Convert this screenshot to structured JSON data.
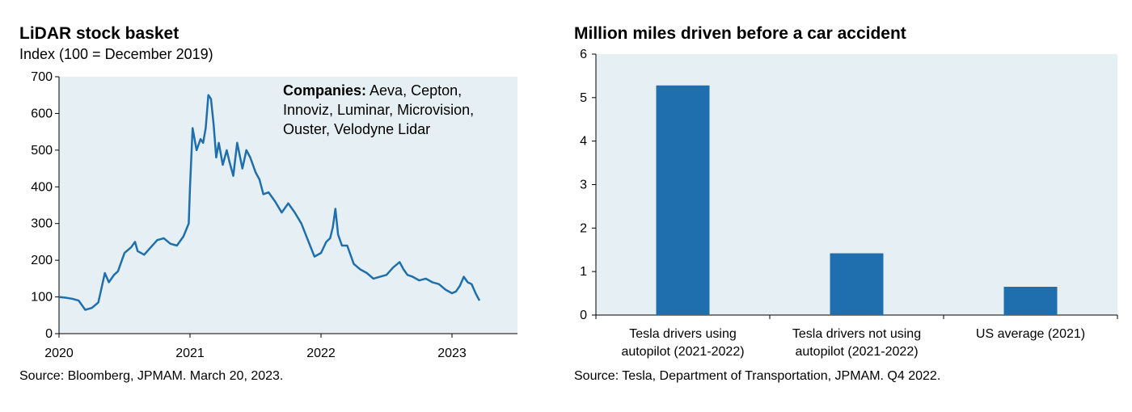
{
  "chart_data": [
    {
      "type": "line",
      "title": "LiDAR stock basket",
      "subtitle": "Index (100 = December 2019)",
      "xlabel": "",
      "ylabel": "",
      "xlim": [
        2020.0,
        2023.5
      ],
      "ylim": [
        0,
        700
      ],
      "y_ticks": [
        "0",
        "100",
        "200",
        "300",
        "400",
        "500",
        "600",
        "700"
      ],
      "x_ticks": [
        "2020",
        "2021",
        "2022",
        "2023"
      ],
      "x_tick_values": [
        2020,
        2021,
        2022,
        2023
      ],
      "grid": false,
      "series": [
        {
          "color": "#1f6fae",
          "x": [
            2020.0,
            2020.05,
            2020.1,
            2020.15,
            2020.2,
            2020.25,
            2020.3,
            2020.35,
            2020.38,
            2020.4,
            2020.42,
            2020.45,
            2020.5,
            2020.55,
            2020.58,
            2020.6,
            2020.65,
            2020.7,
            2020.75,
            2020.8,
            2020.85,
            2020.9,
            2020.95,
            2020.99,
            2021.0,
            2021.02,
            2021.05,
            2021.08,
            2021.1,
            2021.12,
            2021.14,
            2021.16,
            2021.18,
            2021.2,
            2021.22,
            2021.25,
            2021.28,
            2021.3,
            2021.33,
            2021.36,
            2021.4,
            2021.43,
            2021.46,
            2021.5,
            2021.53,
            2021.56,
            2021.6,
            2021.65,
            2021.7,
            2021.75,
            2021.8,
            2021.85,
            2021.9,
            2021.95,
            2022.0,
            2022.04,
            2022.07,
            2022.09,
            2022.11,
            2022.13,
            2022.16,
            2022.2,
            2022.25,
            2022.3,
            2022.35,
            2022.4,
            2022.45,
            2022.5,
            2022.55,
            2022.6,
            2022.63,
            2022.66,
            2022.7,
            2022.75,
            2022.8,
            2022.85,
            2022.9,
            2022.95,
            2023.0,
            2023.03,
            2023.06,
            2023.09,
            2023.12,
            2023.15,
            2023.18,
            2023.21
          ],
          "y": [
            100,
            98,
            95,
            90,
            65,
            70,
            85,
            165,
            140,
            150,
            160,
            170,
            220,
            235,
            250,
            225,
            215,
            235,
            255,
            260,
            245,
            240,
            265,
            300,
            400,
            560,
            500,
            530,
            520,
            560,
            650,
            640,
            570,
            480,
            520,
            460,
            500,
            470,
            430,
            520,
            450,
            500,
            480,
            440,
            420,
            380,
            385,
            360,
            330,
            355,
            330,
            300,
            255,
            210,
            220,
            250,
            260,
            290,
            340,
            270,
            240,
            240,
            190,
            175,
            165,
            150,
            155,
            160,
            180,
            195,
            175,
            160,
            155,
            145,
            150,
            140,
            135,
            120,
            110,
            115,
            130,
            155,
            140,
            135,
            110,
            90
          ]
        }
      ],
      "annotation": {
        "bold": "Companies:",
        "line1": " Aeva, Cepton,",
        "line2": "Innoviz, Luminar, Microvision,",
        "line3": "Ouster, Velodyne Lidar"
      },
      "source": "Source: Bloomberg, JPMAM. March 20, 2023."
    },
    {
      "type": "bar",
      "title": "Million miles driven before a car accident",
      "xlabel": "",
      "ylabel": "",
      "ylim": [
        0,
        6
      ],
      "y_ticks": [
        "0",
        "1",
        "2",
        "3",
        "4",
        "5",
        "6"
      ],
      "grid": false,
      "color": "#1f6fae",
      "categories": [
        [
          "Tesla drivers using",
          "autopilot (2021-2022)"
        ],
        [
          "Tesla drivers not using",
          "autopilot (2021-2022)"
        ],
        [
          "US average (2021)"
        ]
      ],
      "values": [
        5.28,
        1.42,
        0.65
      ],
      "source": "Source: Tesla, Department of Transportation, JPMAM. Q4 2022."
    }
  ]
}
